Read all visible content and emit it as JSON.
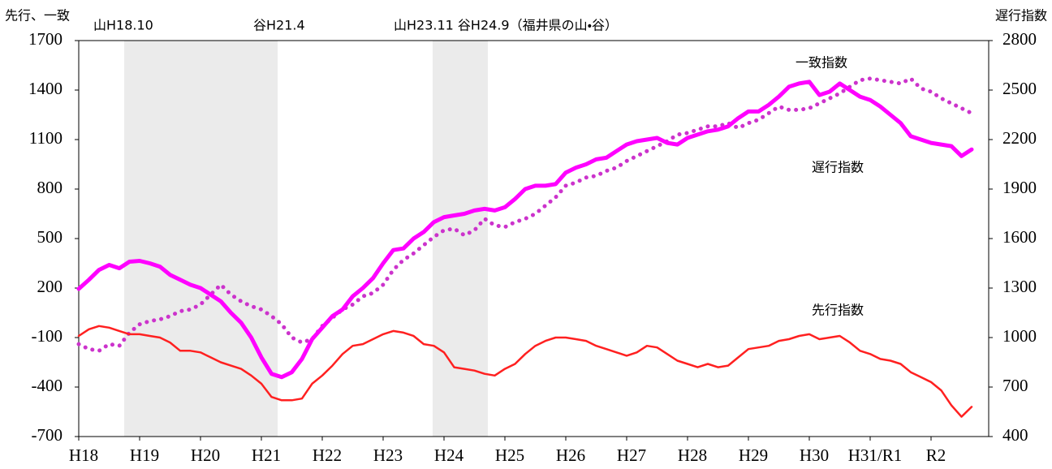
{
  "chart_data": {
    "type": "line",
    "y_label": "先行、一致",
    "y2_label": "遅行指数",
    "annotations": [
      "山H18.10",
      "谷H21.4",
      "山H23.11 谷H24.9（福井県の山・谷）"
    ],
    "categories": [
      "H18",
      null,
      null,
      null,
      null,
      null,
      "H19",
      null,
      null,
      null,
      null,
      null,
      "H20",
      null,
      null,
      null,
      null,
      null,
      "H21",
      null,
      null,
      null,
      null,
      null,
      "H22",
      null,
      null,
      null,
      null,
      null,
      "H23",
      null,
      null,
      null,
      null,
      null,
      "H24",
      null,
      null,
      null,
      null,
      null,
      "H25",
      null,
      null,
      null,
      null,
      null,
      "H26",
      null,
      null,
      null,
      null,
      null,
      "H27",
      null,
      null,
      null,
      null,
      null,
      "H28",
      null,
      null,
      null,
      null,
      null,
      "H29",
      null,
      null,
      null,
      null,
      null,
      "H30",
      null,
      null,
      null,
      null,
      null,
      "H31/R1",
      null,
      null,
      null,
      null,
      null,
      "R2",
      null,
      null,
      null,
      null
    ],
    "series": [
      {
        "name": "一致指数",
        "color": "#ff00ff",
        "style": "solid",
        "axis": "y",
        "values": [
          195,
          250,
          310,
          340,
          320,
          360,
          365,
          350,
          330,
          280,
          250,
          220,
          200,
          160,
          120,
          50,
          -10,
          -100,
          -220,
          -320,
          -340,
          -310,
          -230,
          -110,
          -40,
          30,
          70,
          150,
          200,
          260,
          350,
          430,
          440,
          500,
          540,
          600,
          630,
          640,
          650,
          670,
          680,
          670,
          690,
          740,
          800,
          820,
          820,
          830,
          900,
          930,
          950,
          980,
          990,
          1030,
          1070,
          1090,
          1100,
          1110,
          1080,
          1070,
          1110,
          1130,
          1150,
          1160,
          1180,
          1230,
          1270,
          1270,
          1310,
          1360,
          1420,
          1440,
          1450,
          1370,
          1390,
          1440,
          1400,
          1360,
          1340,
          1300,
          1250,
          1200,
          1120,
          1100,
          1080,
          1070,
          1060,
          1000,
          1040
        ]
      },
      {
        "name": "遅行指数",
        "color": "#cc33cc",
        "style": "dotted",
        "axis": "y2",
        "values": [
          960,
          930,
          920,
          960,
          950,
          1030,
          1080,
          1100,
          1110,
          1130,
          1160,
          1170,
          1200,
          1260,
          1320,
          1260,
          1220,
          1190,
          1170,
          1130,
          1080,
          1000,
          970,
          990,
          1070,
          1120,
          1170,
          1200,
          1250,
          1270,
          1320,
          1410,
          1470,
          1510,
          1560,
          1610,
          1650,
          1660,
          1620,
          1650,
          1720,
          1680,
          1670,
          1700,
          1720,
          1750,
          1800,
          1850,
          1920,
          1940,
          1970,
          1980,
          2010,
          2030,
          2070,
          2100,
          2130,
          2160,
          2190,
          2230,
          2240,
          2260,
          2280,
          2280,
          2300,
          2270,
          2300,
          2320,
          2360,
          2400,
          2380,
          2380,
          2390,
          2420,
          2450,
          2480,
          2520,
          2560,
          2570,
          2560,
          2550,
          2540,
          2570,
          2510,
          2490,
          2450,
          2420,
          2390,
          2360
        ]
      },
      {
        "name": "先行指数",
        "color": "#ff2020",
        "style": "solid",
        "axis": "y",
        "values": [
          -90,
          -50,
          -30,
          -40,
          -60,
          -80,
          -80,
          -90,
          -100,
          -130,
          -180,
          -180,
          -190,
          -220,
          -250,
          -270,
          -290,
          -330,
          -380,
          -460,
          -480,
          -480,
          -470,
          -380,
          -330,
          -270,
          -200,
          -150,
          -140,
          -110,
          -80,
          -60,
          -70,
          -90,
          -140,
          -150,
          -190,
          -280,
          -290,
          -300,
          -320,
          -330,
          -290,
          -260,
          -200,
          -150,
          -120,
          -100,
          -100,
          -110,
          -120,
          -150,
          -170,
          -190,
          -210,
          -190,
          -150,
          -160,
          -200,
          -240,
          -260,
          -280,
          -260,
          -280,
          -270,
          -220,
          -170,
          -160,
          -150,
          -120,
          -110,
          -90,
          -80,
          -110,
          -100,
          -90,
          -130,
          -180,
          -200,
          -230,
          -240,
          -260,
          -310,
          -340,
          -370,
          -420,
          -510,
          -580,
          -520
        ]
      }
    ],
    "ylim": [
      -700,
      1700
    ],
    "yticks": [
      -700,
      -400,
      -100,
      200,
      500,
      800,
      1100,
      1400,
      1700
    ],
    "y2lim": [
      400,
      2800
    ],
    "y2ticks": [
      400,
      700,
      1000,
      1300,
      1600,
      1900,
      2200,
      2500,
      2800
    ],
    "grid": false
  }
}
